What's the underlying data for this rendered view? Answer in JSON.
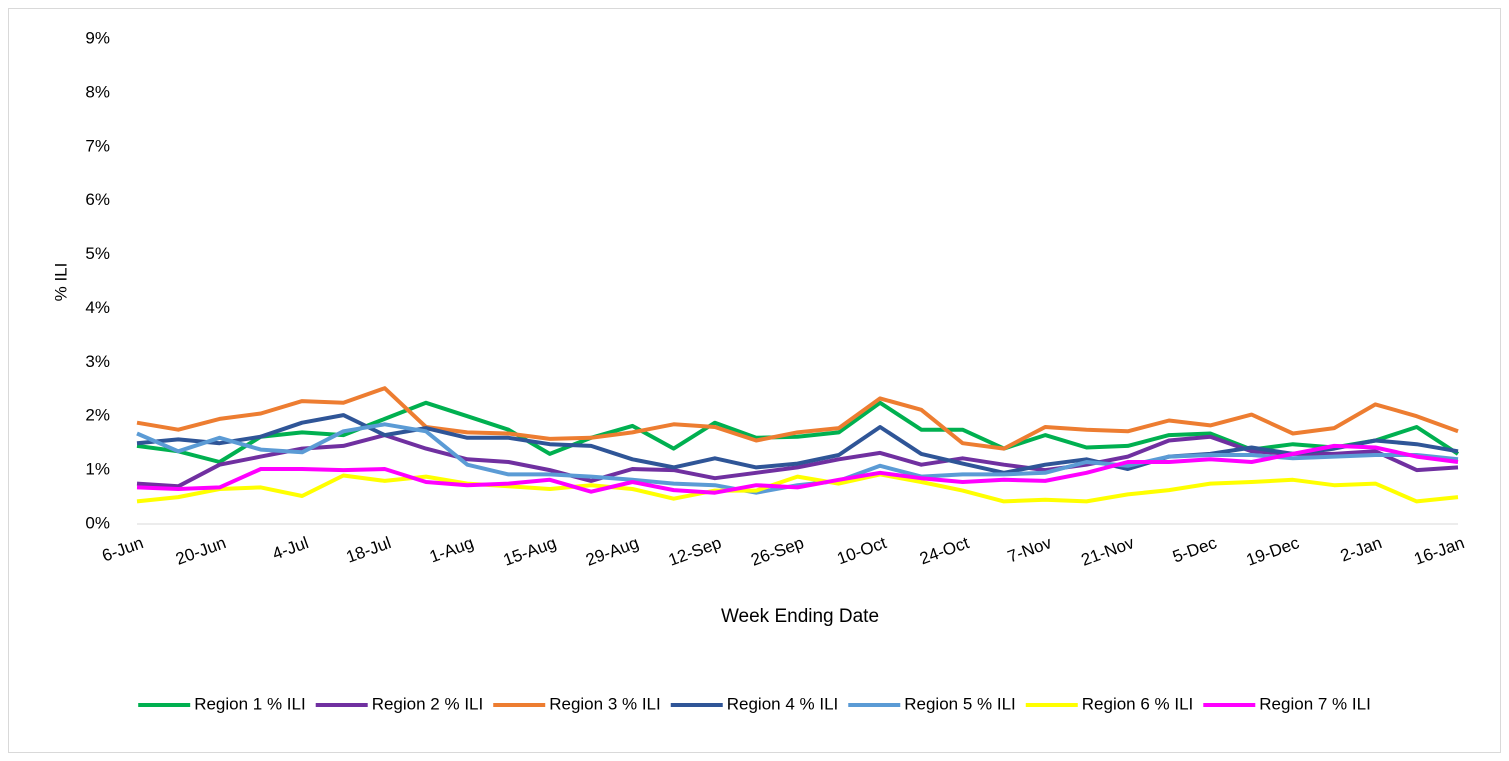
{
  "chart_data": {
    "type": "line",
    "x_label": "Week Ending Date",
    "y_label": "% ILI",
    "categories": [
      "6-Jun",
      null,
      "20-Jun",
      null,
      "4-Jul",
      null,
      "18-Jul",
      null,
      "1-Aug",
      null,
      "15-Aug",
      null,
      "29-Aug",
      null,
      "12-Sep",
      null,
      "26-Sep",
      null,
      "10-Oct",
      null,
      "24-Oct",
      null,
      "7-Nov",
      null,
      "21-Nov",
      null,
      "5-Dec",
      null,
      "19-Dec",
      null,
      "2-Jan",
      null,
      "16-Jan"
    ],
    "ylim": [
      0,
      9
    ],
    "yticks": [
      {
        "value": 0,
        "label": "0%"
      },
      {
        "value": 1,
        "label": "1%"
      },
      {
        "value": 2,
        "label": "2%"
      },
      {
        "value": 3,
        "label": "3%"
      },
      {
        "value": 4,
        "label": "4%"
      },
      {
        "value": 5,
        "label": "5%"
      },
      {
        "value": 6,
        "label": "6%"
      },
      {
        "value": 7,
        "label": "7%"
      },
      {
        "value": 8,
        "label": "8%"
      },
      {
        "value": 9,
        "label": "9%"
      }
    ],
    "grid": false,
    "legend": "bottom",
    "series": [
      {
        "name": "Region 1 % ILI",
        "color": "#00b050",
        "values": [
          1.45,
          1.35,
          1.15,
          1.62,
          1.7,
          1.65,
          1.95,
          2.25,
          2.0,
          1.75,
          1.3,
          1.6,
          1.82,
          1.4,
          1.88,
          1.6,
          1.62,
          1.7,
          2.25,
          1.75,
          1.75,
          1.4,
          1.65,
          1.42,
          1.45,
          1.65,
          1.68,
          1.38,
          1.48,
          1.42,
          1.55,
          1.8,
          1.3
        ]
      },
      {
        "name": "Region 2 % ILI",
        "color": "#7030a0",
        "values": [
          0.75,
          0.7,
          1.1,
          1.25,
          1.4,
          1.45,
          1.65,
          1.4,
          1.2,
          1.15,
          1.0,
          0.8,
          1.02,
          1.0,
          0.85,
          0.95,
          1.05,
          1.2,
          1.32,
          1.1,
          1.22,
          1.1,
          1.0,
          1.1,
          1.25,
          1.55,
          1.62,
          1.35,
          1.3,
          1.3,
          1.35,
          1.0,
          1.05
        ]
      },
      {
        "name": "Region 3 % ILI",
        "color": "#ed7d31",
        "values": [
          1.88,
          1.75,
          1.95,
          2.05,
          2.28,
          2.25,
          2.52,
          1.8,
          1.7,
          1.68,
          1.58,
          1.6,
          1.7,
          1.85,
          1.8,
          1.55,
          1.7,
          1.78,
          2.33,
          2.12,
          1.5,
          1.4,
          1.8,
          1.75,
          1.72,
          1.92,
          1.83,
          2.03,
          1.68,
          1.78,
          2.22,
          2.0,
          1.72
        ]
      },
      {
        "name": "Region 4 % ILI",
        "color": "#2f5597",
        "values": [
          1.5,
          1.57,
          1.5,
          1.62,
          1.88,
          2.02,
          1.65,
          1.78,
          1.6,
          1.6,
          1.48,
          1.45,
          1.2,
          1.05,
          1.22,
          1.05,
          1.12,
          1.28,
          1.8,
          1.3,
          1.12,
          0.95,
          1.1,
          1.2,
          1.02,
          1.25,
          1.3,
          1.42,
          1.3,
          1.4,
          1.55,
          1.48,
          1.35
        ]
      },
      {
        "name": "Region 5 % ILI",
        "color": "#5b9bd5",
        "values": [
          1.68,
          1.35,
          1.6,
          1.38,
          1.33,
          1.72,
          1.85,
          1.72,
          1.1,
          0.92,
          0.92,
          0.88,
          0.82,
          0.75,
          0.72,
          0.58,
          0.72,
          0.8,
          1.08,
          0.88,
          0.92,
          0.92,
          0.95,
          1.15,
          1.08,
          1.25,
          1.28,
          1.28,
          1.22,
          1.25,
          1.28,
          1.28,
          1.2
        ]
      },
      {
        "name": "Region 6 % ILI",
        "color": "#ffff00",
        "values": [
          0.42,
          0.5,
          0.65,
          0.68,
          0.52,
          0.9,
          0.8,
          0.88,
          0.75,
          0.7,
          0.65,
          0.72,
          0.65,
          0.47,
          0.62,
          0.62,
          0.88,
          0.75,
          0.92,
          0.78,
          0.62,
          0.42,
          0.45,
          0.42,
          0.55,
          0.63,
          0.75,
          0.78,
          0.82,
          0.72,
          0.75,
          0.42,
          0.5
        ]
      },
      {
        "name": "Region 7 % ILI",
        "color": "#ff00ff",
        "values": [
          0.68,
          0.65,
          0.68,
          1.02,
          1.02,
          1.0,
          1.02,
          0.78,
          0.72,
          0.75,
          0.82,
          0.6,
          0.78,
          0.63,
          0.58,
          0.72,
          0.68,
          0.82,
          0.95,
          0.85,
          0.78,
          0.82,
          0.8,
          0.95,
          1.15,
          1.15,
          1.2,
          1.15,
          1.3,
          1.45,
          1.42,
          1.25,
          1.15
        ]
      }
    ]
  }
}
